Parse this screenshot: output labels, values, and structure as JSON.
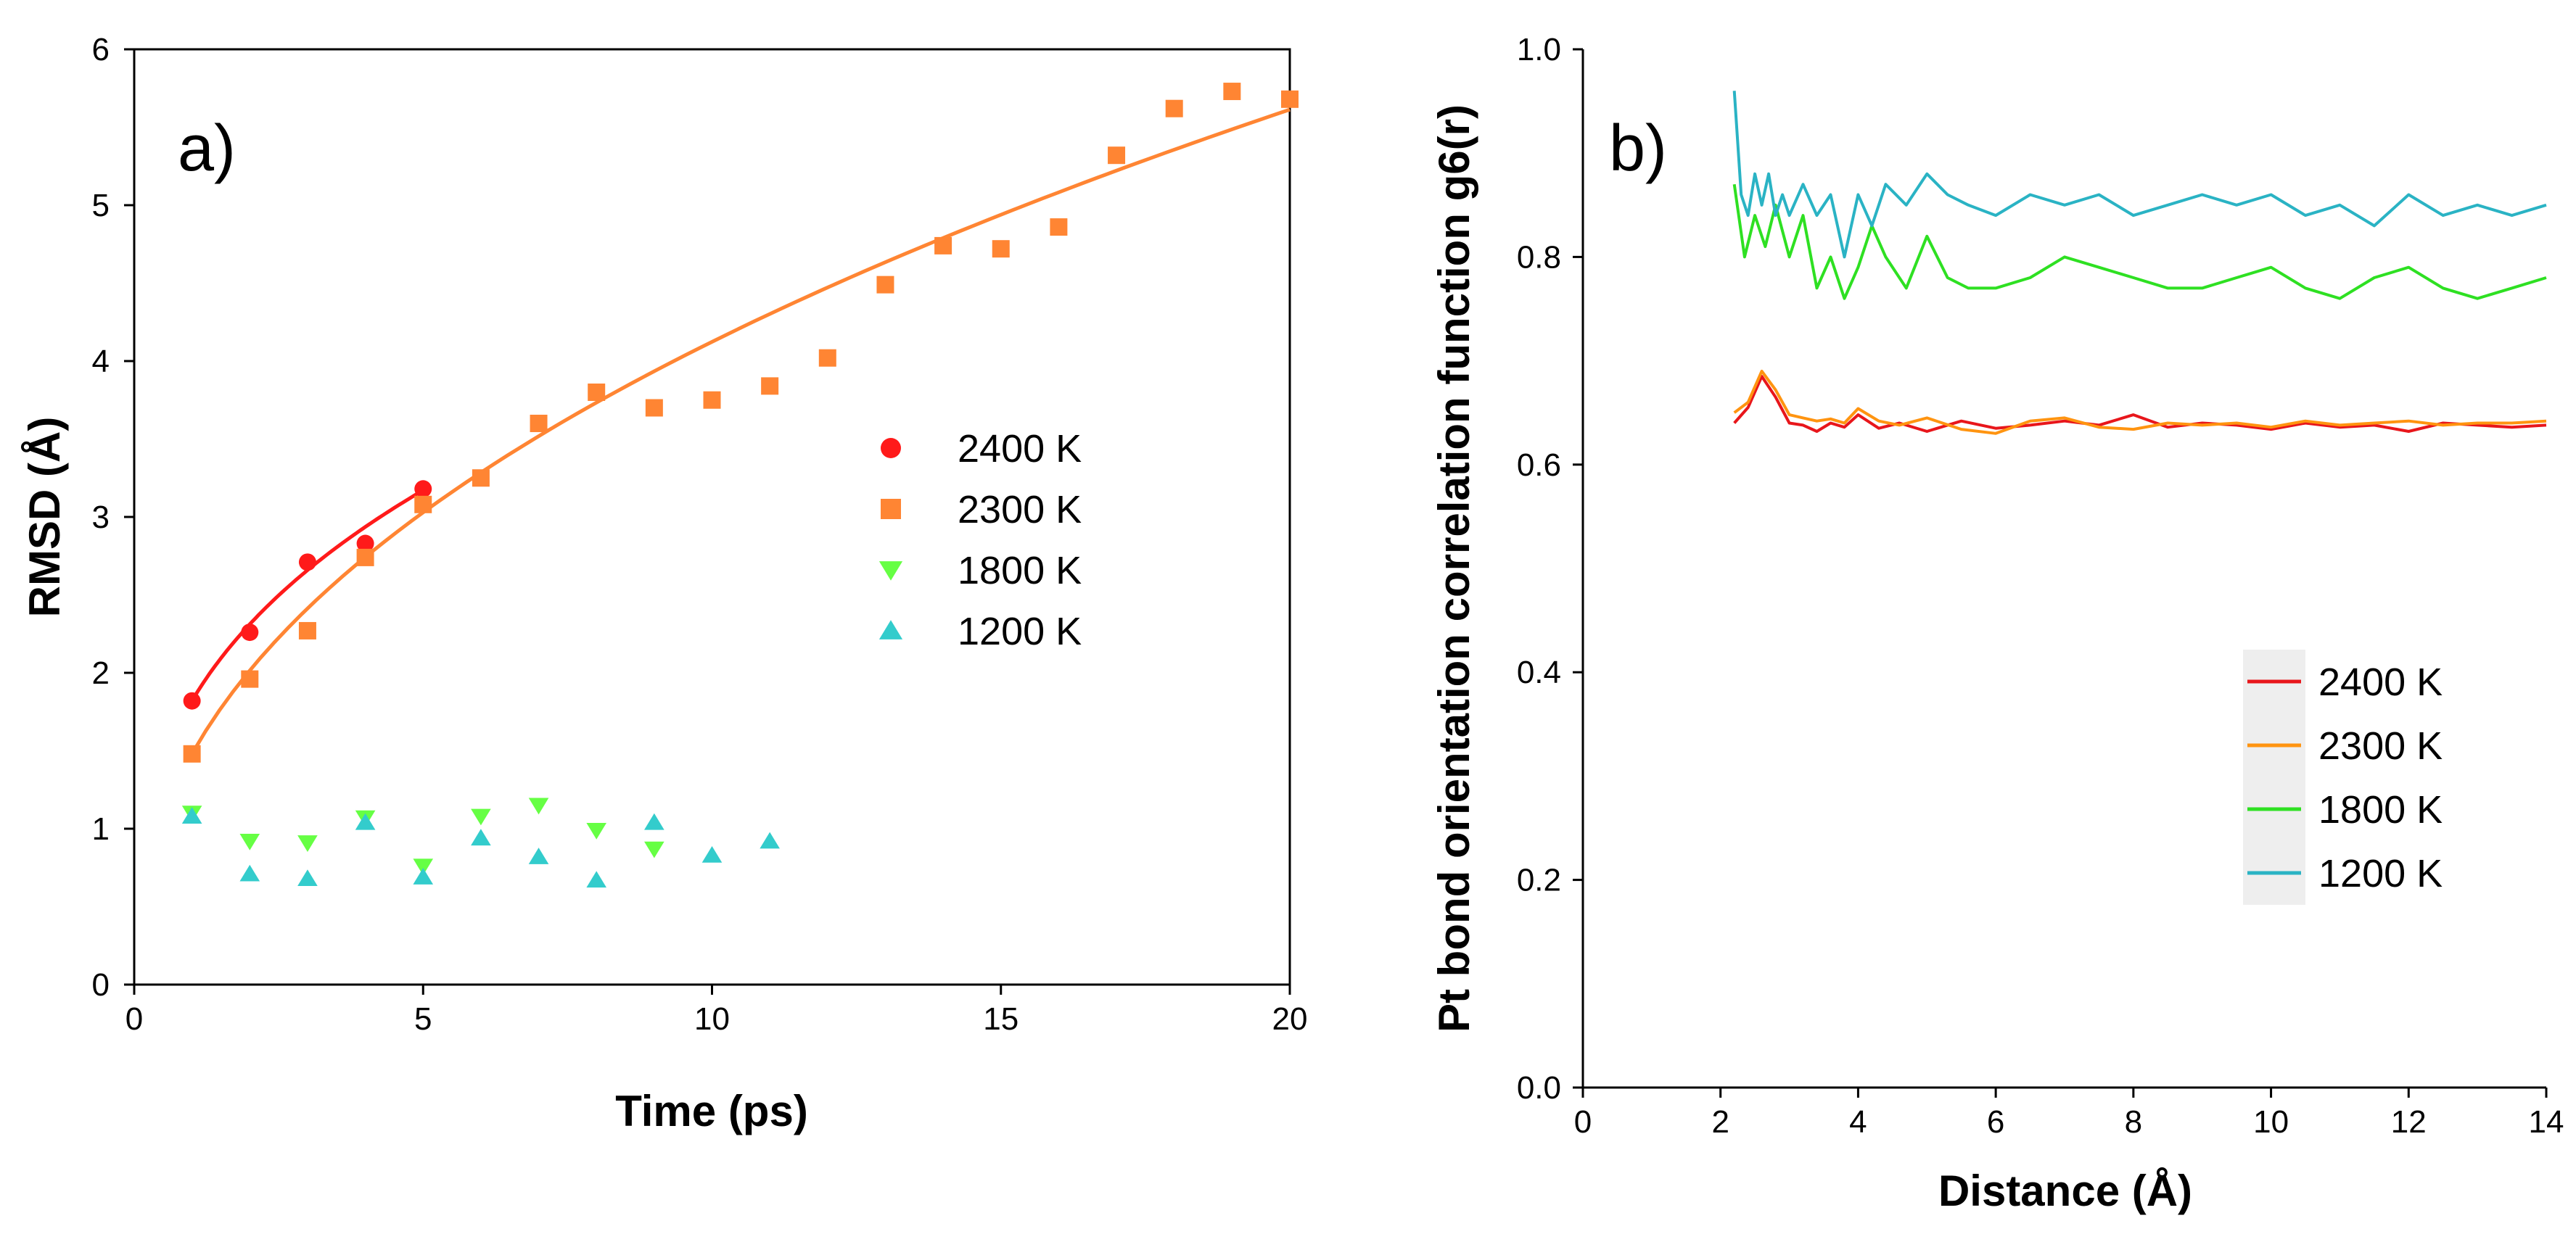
{
  "chart_data": [
    {
      "panel": "a)",
      "type": "scatter",
      "xlabel": "Time (ps)",
      "ylabel": "RMSD (Å)",
      "xlim": [
        0,
        20
      ],
      "ylim": [
        0,
        6
      ],
      "xticks": [
        0,
        5,
        10,
        15,
        20
      ],
      "yticks": [
        0,
        1,
        2,
        3,
        4,
        5,
        6
      ],
      "legend_position": "center-right",
      "series": [
        {
          "name": "2400 K",
          "marker": "circle",
          "color": "#ff1a1a",
          "x": [
            1,
            2,
            3,
            4,
            5
          ],
          "y": [
            1.82,
            2.26,
            2.71,
            2.83,
            3.18
          ],
          "fit": {
            "form": "a*x^b",
            "a": 1.82,
            "b": 0.345,
            "range": [
              1,
              5
            ]
          }
        },
        {
          "name": "2300 K",
          "marker": "square",
          "color": "#ff8533",
          "x": [
            1,
            2,
            3,
            4,
            5,
            6,
            7,
            8,
            9,
            10,
            11,
            12,
            13,
            14,
            15,
            16,
            17,
            18,
            19,
            20
          ],
          "y": [
            1.48,
            1.96,
            2.27,
            2.74,
            3.08,
            3.25,
            3.6,
            3.8,
            3.7,
            3.75,
            3.84,
            4.02,
            4.49,
            4.74,
            4.72,
            4.86,
            5.32,
            5.62,
            5.73,
            5.68
          ],
          "fit": {
            "form": "a*x^b",
            "a": 1.48,
            "b": 0.445,
            "range": [
              1,
              20
            ]
          }
        },
        {
          "name": "1800 K",
          "marker": "triangle-down",
          "color": "#66ff44",
          "x": [
            1,
            2,
            3,
            4,
            5,
            6,
            7,
            8,
            9
          ],
          "y": [
            1.1,
            0.92,
            0.91,
            1.07,
            0.76,
            1.08,
            1.15,
            0.99,
            0.87
          ]
        },
        {
          "name": "1200 K",
          "marker": "triangle-up",
          "color": "#33cccc",
          "x": [
            1,
            2,
            3,
            4,
            5,
            6,
            7,
            8,
            9,
            10,
            11
          ],
          "y": [
            1.08,
            0.71,
            0.68,
            1.04,
            0.69,
            0.94,
            0.82,
            0.67,
            1.04,
            0.83,
            0.92
          ]
        }
      ]
    },
    {
      "panel": "b)",
      "type": "line",
      "xlabel": "Distance (Å)",
      "ylabel": "Pt bond orientation correlation function g6(r)",
      "xlim": [
        0,
        14
      ],
      "ylim": [
        0,
        1.0
      ],
      "xticks": [
        0,
        2,
        4,
        6,
        8,
        10,
        12,
        14
      ],
      "yticks": [
        "0.0",
        "0.2",
        "0.4",
        "0.6",
        "0.8",
        "1.0"
      ],
      "legend_position": "bottom-right",
      "series": [
        {
          "name": "2400 K",
          "color": "#e8161b",
          "x": [
            2.2,
            2.4,
            2.6,
            2.8,
            3.0,
            3.2,
            3.4,
            3.6,
            3.8,
            4.0,
            4.3,
            4.6,
            5.0,
            5.5,
            6.0,
            6.5,
            7.0,
            7.5,
            8.0,
            8.5,
            9.0,
            9.5,
            10.0,
            10.5,
            11.0,
            11.5,
            12.0,
            12.5,
            13.0,
            13.5,
            14.0
          ],
          "y": [
            0.64,
            0.655,
            0.685,
            0.665,
            0.64,
            0.638,
            0.632,
            0.64,
            0.636,
            0.648,
            0.635,
            0.64,
            0.632,
            0.642,
            0.635,
            0.638,
            0.642,
            0.638,
            0.648,
            0.636,
            0.64,
            0.638,
            0.634,
            0.64,
            0.636,
            0.638,
            0.632,
            0.64,
            0.638,
            0.636,
            0.638
          ]
        },
        {
          "name": "2300 K",
          "color": "#ff9410",
          "x": [
            2.2,
            2.4,
            2.6,
            2.8,
            3.0,
            3.2,
            3.4,
            3.6,
            3.8,
            4.0,
            4.3,
            4.6,
            5.0,
            5.5,
            6.0,
            6.5,
            7.0,
            7.5,
            8.0,
            8.5,
            9.0,
            9.5,
            10.0,
            10.5,
            11.0,
            11.5,
            12.0,
            12.5,
            13.0,
            13.5,
            14.0
          ],
          "y": [
            0.65,
            0.66,
            0.69,
            0.672,
            0.648,
            0.645,
            0.642,
            0.644,
            0.64,
            0.654,
            0.642,
            0.638,
            0.645,
            0.634,
            0.63,
            0.642,
            0.645,
            0.636,
            0.634,
            0.64,
            0.638,
            0.64,
            0.636,
            0.642,
            0.638,
            0.64,
            0.642,
            0.638,
            0.64,
            0.64,
            0.642
          ]
        },
        {
          "name": "1800 K",
          "color": "#2ee022",
          "x": [
            2.2,
            2.35,
            2.5,
            2.65,
            2.8,
            3.0,
            3.2,
            3.4,
            3.6,
            3.8,
            4.0,
            4.2,
            4.4,
            4.7,
            5.0,
            5.3,
            5.6,
            6.0,
            6.5,
            7.0,
            7.5,
            8.0,
            8.5,
            9.0,
            9.5,
            10.0,
            10.5,
            11.0,
            11.5,
            12.0,
            12.5,
            13.0,
            13.5,
            14.0
          ],
          "y": [
            0.87,
            0.8,
            0.84,
            0.81,
            0.85,
            0.8,
            0.84,
            0.77,
            0.8,
            0.76,
            0.79,
            0.83,
            0.8,
            0.77,
            0.82,
            0.78,
            0.77,
            0.77,
            0.78,
            0.8,
            0.79,
            0.78,
            0.77,
            0.77,
            0.78,
            0.79,
            0.77,
            0.76,
            0.78,
            0.79,
            0.77,
            0.76,
            0.77,
            0.78
          ]
        },
        {
          "name": "1200 K",
          "color": "#2ab3c4",
          "x": [
            2.2,
            2.3,
            2.4,
            2.5,
            2.6,
            2.7,
            2.8,
            2.9,
            3.0,
            3.2,
            3.4,
            3.6,
            3.8,
            4.0,
            4.2,
            4.4,
            4.7,
            5.0,
            5.3,
            5.6,
            6.0,
            6.5,
            7.0,
            7.5,
            8.0,
            8.5,
            9.0,
            9.5,
            10.0,
            10.5,
            11.0,
            11.5,
            12.0,
            12.5,
            13.0,
            13.5,
            14.0
          ],
          "y": [
            0.96,
            0.86,
            0.84,
            0.88,
            0.85,
            0.88,
            0.84,
            0.86,
            0.84,
            0.87,
            0.84,
            0.86,
            0.8,
            0.86,
            0.83,
            0.87,
            0.85,
            0.88,
            0.86,
            0.85,
            0.84,
            0.86,
            0.85,
            0.86,
            0.84,
            0.85,
            0.86,
            0.85,
            0.86,
            0.84,
            0.85,
            0.83,
            0.86,
            0.84,
            0.85,
            0.84,
            0.85
          ]
        }
      ]
    }
  ]
}
